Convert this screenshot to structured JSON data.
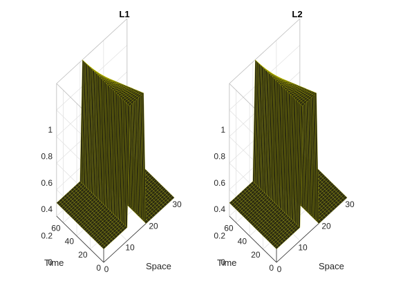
{
  "chart_data": [
    {
      "type": "surface3d",
      "title": "L1",
      "xlabel": "Space",
      "ylabel": "Time",
      "zlabel": "",
      "xlim": [
        0,
        30
      ],
      "ylim": [
        0,
        70
      ],
      "zlim": [
        0,
        1
      ],
      "xticks": [
        "0",
        "10",
        "20",
        "30"
      ],
      "yticks": [
        "0",
        "20",
        "40",
        "60"
      ],
      "zticks": [
        "0",
        "0.2",
        "0.4",
        "0.6",
        "0.8",
        "1"
      ],
      "grid": true,
      "surface_color": "#2b2b10",
      "edge_color": "#d8d800",
      "profile": {
        "space": [
          0,
          10,
          11,
          17,
          18,
          30
        ],
        "value_at_time_0": [
          0.1,
          0.1,
          1.0,
          1.0,
          0.0,
          0.0
        ],
        "value_at_time_70": [
          0.1,
          0.1,
          1.0,
          0.8,
          0.0,
          0.0
        ]
      }
    },
    {
      "type": "surface3d",
      "title": "L2",
      "xlabel": "Space",
      "ylabel": "Time",
      "zlabel": "",
      "xlim": [
        0,
        30
      ],
      "ylim": [
        0,
        70
      ],
      "zlim": [
        0,
        1
      ],
      "xticks": [
        "0",
        "10",
        "20",
        "30"
      ],
      "yticks": [
        "0",
        "20",
        "40",
        "60"
      ],
      "zticks": [
        "0",
        "0.2",
        "0.4",
        "0.6",
        "0.8",
        "1"
      ],
      "grid": true,
      "surface_color": "#2b2b10",
      "edge_color": "#d8d800",
      "profile": {
        "space": [
          0,
          10,
          11,
          17,
          18,
          30
        ],
        "value_at_time_0": [
          0.1,
          0.1,
          1.0,
          1.0,
          0.0,
          0.0
        ],
        "value_at_time_70": [
          0.1,
          0.1,
          1.0,
          0.8,
          0.0,
          0.0
        ]
      }
    }
  ]
}
